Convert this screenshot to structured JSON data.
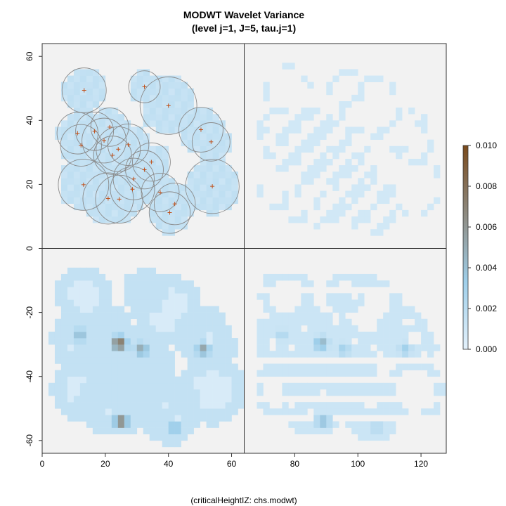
{
  "chart_data": {
    "type": "heatmap",
    "title": "MODWT Wavelet Variance",
    "subtitle": "(level j=1, J=5, tau.j=1)",
    "caption": "(criticalHeightIZ: chs.modwt)",
    "xlim": [
      0,
      128
    ],
    "ylim": [
      -64,
      64
    ],
    "x_ticks": [
      0,
      20,
      40,
      60,
      80,
      100,
      120
    ],
    "y_ticks": [
      60,
      40,
      20,
      0,
      -20,
      -40,
      -60
    ],
    "colorbar": {
      "range": [
        0,
        0.01
      ],
      "ticks": [
        "0.010",
        "0.008",
        "0.006",
        "0.004",
        "0.002",
        "0.000"
      ],
      "colors": [
        "#e4f1fb",
        "#9fcfea",
        "#8e8a80",
        "#7a4a1c"
      ]
    },
    "panel_dividers": {
      "x": 64,
      "y": 0
    },
    "background": "#f2f2f2",
    "circle_color": "#8a8a8a",
    "marker_color": "#c0501a",
    "circles": [
      {
        "cx": 13.3,
        "cy": 49.4,
        "r": 7
      },
      {
        "cx": 32.4,
        "cy": 50.5,
        "r": 5
      },
      {
        "cx": 40.0,
        "cy": 44.6,
        "r": 9
      },
      {
        "cx": 50.3,
        "cy": 37.1,
        "r": 7
      },
      {
        "cx": 53.5,
        "cy": 33.3,
        "r": 6
      },
      {
        "cx": 16.6,
        "cy": 36.6,
        "r": 6
      },
      {
        "cx": 11.2,
        "cy": 36.0,
        "r": 6.5
      },
      {
        "cx": 21.4,
        "cy": 37.9,
        "r": 6
      },
      {
        "cx": 12.3,
        "cy": 32.2,
        "r": 6.5
      },
      {
        "cx": 19.6,
        "cy": 33.7,
        "r": 7
      },
      {
        "cx": 24.1,
        "cy": 31.0,
        "r": 7
      },
      {
        "cx": 27.3,
        "cy": 32.4,
        "r": 6.5
      },
      {
        "cx": 22.3,
        "cy": 29.1,
        "r": 6
      },
      {
        "cx": 32.4,
        "cy": 24.6,
        "r": 6
      },
      {
        "cx": 34.6,
        "cy": 27.0,
        "r": 6
      },
      {
        "cx": 13.1,
        "cy": 19.9,
        "r": 8
      },
      {
        "cx": 20.9,
        "cy": 15.6,
        "r": 8
      },
      {
        "cx": 24.4,
        "cy": 15.4,
        "r": 7.5
      },
      {
        "cx": 28.6,
        "cy": 18.5,
        "r": 7
      },
      {
        "cx": 29.0,
        "cy": 21.7,
        "r": 6.5
      },
      {
        "cx": 37.4,
        "cy": 17.5,
        "r": 6
      },
      {
        "cx": 40.4,
        "cy": 11.2,
        "r": 6.5
      },
      {
        "cx": 42.0,
        "cy": 13.9,
        "r": 6.5
      },
      {
        "cx": 53.9,
        "cy": 19.4,
        "r": 8.5
      }
    ],
    "markers": [
      {
        "x": 13.3,
        "y": 49.4
      },
      {
        "x": 32.4,
        "y": 50.5
      },
      {
        "x": 40.0,
        "y": 44.6
      },
      {
        "x": 50.3,
        "y": 37.1
      },
      {
        "x": 53.5,
        "y": 33.3
      },
      {
        "x": 16.6,
        "y": 36.6
      },
      {
        "x": 11.2,
        "y": 36.0
      },
      {
        "x": 21.4,
        "y": 37.9
      },
      {
        "x": 12.3,
        "y": 32.2
      },
      {
        "x": 19.6,
        "y": 33.7
      },
      {
        "x": 24.1,
        "y": 31.0
      },
      {
        "x": 27.3,
        "y": 32.4
      },
      {
        "x": 22.3,
        "y": 29.1
      },
      {
        "x": 32.4,
        "y": 24.6
      },
      {
        "x": 34.6,
        "y": 27.0
      },
      {
        "x": 13.1,
        "y": 19.9
      },
      {
        "x": 20.9,
        "y": 15.6
      },
      {
        "x": 24.4,
        "y": 15.4
      },
      {
        "x": 28.6,
        "y": 18.5
      },
      {
        "x": 29.0,
        "y": 21.7
      },
      {
        "x": 37.4,
        "y": 17.5
      },
      {
        "x": 40.4,
        "y": 11.2
      },
      {
        "x": 42.0,
        "y": 13.9
      },
      {
        "x": 53.9,
        "y": 19.4
      }
    ],
    "hotspots": [
      {
        "x": 24.4,
        "y": -29.6,
        "value": 0.009
      },
      {
        "x": 31.5,
        "y": -31.5,
        "value": 0.006
      },
      {
        "x": 51.0,
        "y": -31.5,
        "value": 0.006
      },
      {
        "x": 25.0,
        "y": -54.0,
        "value": 0.008
      },
      {
        "x": 42.0,
        "y": -56.0,
        "value": 0.005
      },
      {
        "x": 12.0,
        "y": -27.0,
        "value": 0.005
      }
    ]
  }
}
